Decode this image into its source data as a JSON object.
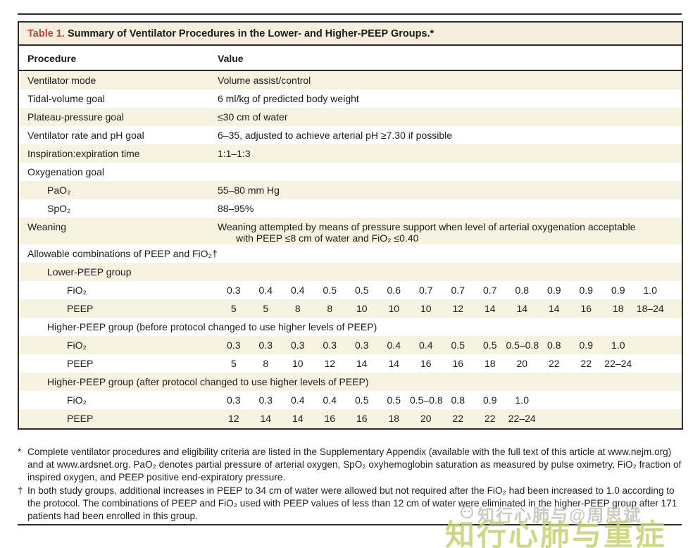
{
  "table": {
    "title_label": "Table 1.",
    "title_text": " Summary of Ventilator Procedures in the Lower- and Higher-PEEP Groups.*",
    "columns": {
      "procedure": "Procedure",
      "value": "Value"
    },
    "rows": [
      {
        "label": "Ventilator mode",
        "value": "Volume assist/control"
      },
      {
        "label": "Tidal-volume goal",
        "value": "6 ml/kg of predicted body weight"
      },
      {
        "label": "Plateau-pressure goal",
        "value": "≤30 cm of water"
      },
      {
        "label": "Ventilator rate and pH goal",
        "value": "6–35, adjusted to achieve arterial pH ≥7.30 if possible"
      },
      {
        "label": "Inspiration:expiration time",
        "value": "1:1–1:3"
      },
      {
        "label": "Oxygenation goal",
        "value": ""
      },
      {
        "label": "PaO₂",
        "value": "55–80 mm Hg"
      },
      {
        "label": "SpO₂",
        "value": "88–95%"
      },
      {
        "label": "Weaning",
        "value": "Weaning attempted by means of pressure support when level of arterial oxygenation acceptable",
        "value_line2": "with PEEP ≤8 cm of water and FiO₂ ≤0.40"
      },
      {
        "label": "Allowable combinations of PEEP and FiO₂†",
        "value": ""
      }
    ],
    "combo_row_labels": {
      "fio2": "FiO₂",
      "peep": "PEEP"
    },
    "combo_groups": [
      {
        "name": "Lower-PEEP group",
        "fio2": [
          "0.3",
          "0.4",
          "0.4",
          "0.5",
          "0.5",
          "0.6",
          "0.7",
          "0.7",
          "0.7",
          "0.8",
          "0.9",
          "0.9",
          "0.9",
          "1.0"
        ],
        "peep": [
          "5",
          "5",
          "8",
          "8",
          "10",
          "10",
          "10",
          "12",
          "14",
          "14",
          "14",
          "16",
          "18",
          "18–24"
        ]
      },
      {
        "name": "Higher-PEEP group (before protocol changed to use higher levels of PEEP)",
        "fio2": [
          "0.3",
          "0.3",
          "0.3",
          "0.3",
          "0.3",
          "0.4",
          "0.4",
          "0.5",
          "0.5",
          "0.5–0.8",
          "0.8",
          "0.9",
          "1.0"
        ],
        "peep": [
          "5",
          "8",
          "10",
          "12",
          "14",
          "14",
          "16",
          "16",
          "18",
          "20",
          "22",
          "22",
          "22–24"
        ]
      },
      {
        "name": "Higher-PEEP group (after protocol changed to use higher levels of PEEP)",
        "fio2": [
          "0.3",
          "0.3",
          "0.4",
          "0.4",
          "0.5",
          "0.5",
          "0.5–0.8",
          "0.8",
          "0.9",
          "1.0"
        ],
        "peep": [
          "12",
          "14",
          "14",
          "16",
          "16",
          "18",
          "20",
          "22",
          "22",
          "22–24"
        ]
      }
    ]
  },
  "footnotes": [
    {
      "marker": "*",
      "text": "Complete ventilator procedures and eligibility criteria are listed in the Supplementary Appendix (available with the full text of this article at www.nejm.org) and at www.ardsnet.org. PaO₂ denotes partial pressure of arterial oxygen, SpO₂ oxyhemoglobin saturation as measured by pulse oximetry, FiO₂ fraction of inspired oxygen, and PEEP positive end-expiratory pressure."
    },
    {
      "marker": "†",
      "text": "In both study groups, additional increases in PEEP to 34 cm of water were allowed but not required after the FiO₂ had been increased to 1.0 according to the protocol. The combinations of PEEP and FiO₂ used with PEEP values of less than 12 cm of water were eliminated in the higher-PEEP group after 171 patients had been enrolled in this group."
    }
  ],
  "watermark": {
    "small_text": "知行心肺与@周思斌",
    "large_text": "知行心肺与重症"
  },
  "colors": {
    "accent_red": "#b5453e",
    "row_stripe": "#f8f2e1",
    "title_bar_bg": "#f6efde",
    "border_dark": "#2c2c2c",
    "watermark_green": "#c6d171",
    "watermark_gray": "#a0a08c"
  }
}
